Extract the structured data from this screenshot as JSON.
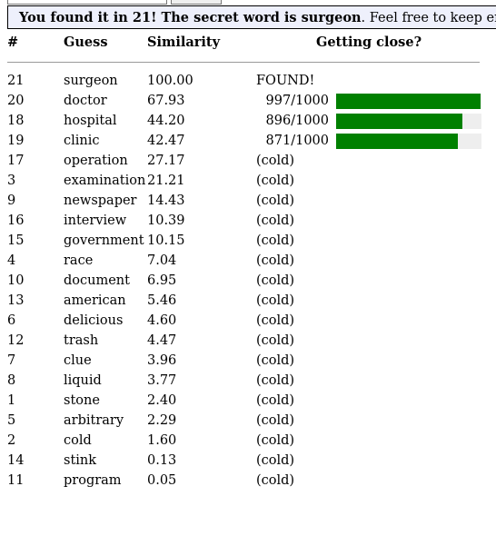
{
  "banner": {
    "bold_text": "You found it in 21! The secret word is surgeon",
    "rest_text": ". Feel free to keep entering words"
  },
  "table": {
    "headers": {
      "num": "#",
      "guess": "Guess",
      "similarity": "Similarity",
      "close": "Getting close?"
    },
    "found_label": "FOUND!",
    "rows": [
      {
        "num": "21",
        "guess": "surgeon",
        "similarity": "100.00",
        "status": "found"
      },
      {
        "num": "20",
        "guess": "doctor",
        "similarity": "67.93",
        "proximity": "997/1000",
        "rank": 997
      },
      {
        "num": "18",
        "guess": "hospital",
        "similarity": "44.20",
        "proximity": "896/1000",
        "rank": 896
      },
      {
        "num": "19",
        "guess": "clinic",
        "similarity": "42.47",
        "proximity": "871/1000",
        "rank": 871
      },
      {
        "num": "17",
        "guess": "operation",
        "similarity": "27.17",
        "proximity": "(cold)"
      },
      {
        "num": "3",
        "guess": "examination",
        "similarity": "21.21",
        "proximity": "(cold)"
      },
      {
        "num": "9",
        "guess": "newspaper",
        "similarity": "14.43",
        "proximity": "(cold)"
      },
      {
        "num": "16",
        "guess": "interview",
        "similarity": "10.39",
        "proximity": "(cold)"
      },
      {
        "num": "15",
        "guess": "government",
        "similarity": "10.15",
        "proximity": "(cold)"
      },
      {
        "num": "4",
        "guess": "race",
        "similarity": "7.04",
        "proximity": "(cold)"
      },
      {
        "num": "10",
        "guess": "document",
        "similarity": "6.95",
        "proximity": "(cold)"
      },
      {
        "num": "13",
        "guess": "american",
        "similarity": "5.46",
        "proximity": "(cold)"
      },
      {
        "num": "6",
        "guess": "delicious",
        "similarity": "4.60",
        "proximity": "(cold)"
      },
      {
        "num": "12",
        "guess": "trash",
        "similarity": "4.47",
        "proximity": "(cold)"
      },
      {
        "num": "7",
        "guess": "clue",
        "similarity": "3.96",
        "proximity": "(cold)"
      },
      {
        "num": "8",
        "guess": "liquid",
        "similarity": "3.77",
        "proximity": "(cold)"
      },
      {
        "num": "1",
        "guess": "stone",
        "similarity": "2.40",
        "proximity": "(cold)"
      },
      {
        "num": "5",
        "guess": "arbitrary",
        "similarity": "2.29",
        "proximity": "(cold)"
      },
      {
        "num": "2",
        "guess": "cold",
        "similarity": "1.60",
        "proximity": "(cold)"
      },
      {
        "num": "14",
        "guess": "stink",
        "similarity": "0.13",
        "proximity": "(cold)"
      },
      {
        "num": "11",
        "guess": "program",
        "similarity": "0.05",
        "proximity": "(cold)"
      }
    ],
    "bar_color": "#008000",
    "bar_track_color": "#eeeeee",
    "rank_max": 1000
  }
}
